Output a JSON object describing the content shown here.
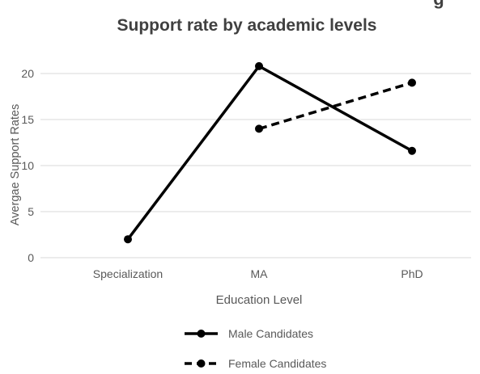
{
  "chart_data": {
    "type": "line",
    "title_partial": "g",
    "title": "Support rate by academic levels",
    "xlabel": "Education Level",
    "ylabel": "Avergae Support Rates",
    "categories": [
      "Specialization",
      "MA",
      "PhD"
    ],
    "yticks": [
      "0",
      "5",
      "10",
      "15",
      "20"
    ],
    "ylim": [
      0,
      22.5
    ],
    "grid": true,
    "legend_position": "bottom",
    "series": [
      {
        "name": "Male Candidates",
        "values": [
          2,
          20.8,
          11.6
        ],
        "style": "solid",
        "color": "#000000"
      },
      {
        "name": "Female Candidates",
        "values": [
          null,
          14,
          19
        ],
        "style": "dashed",
        "color": "#000000"
      }
    ]
  },
  "colors": {
    "grid": "#d9d9d9",
    "axis_text": "#595959",
    "title": "#404040"
  }
}
